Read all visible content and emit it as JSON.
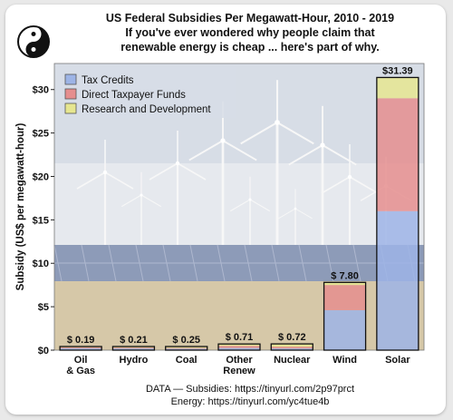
{
  "header": {
    "title_lines": [
      "US Federal Subsidies Per Megawatt-Hour, 2010 - 2019",
      "If you've ever wondered why people claim that",
      "renewable energy is cheap ... here's part of why."
    ]
  },
  "footer": {
    "lines": [
      "DATA — Subsidies: https://tinyurl.com/2p97prct",
      "Energy: https://tinyurl.com/yc4tue4b"
    ]
  },
  "logo": {
    "icon": "yin-yang-face-icon"
  },
  "colors": {
    "tax_credits": "#9db4e6",
    "direct_funds": "#e58e8e",
    "research": "#e6e690",
    "sky": "#d7dde6",
    "ground": "#d6c8a8",
    "solar_panels": "#8d9bb8"
  },
  "chart_data": {
    "type": "bar",
    "stacked": true,
    "title": "US Federal Subsidies Per Megawatt-Hour, 2010 - 2019",
    "subtitle": "If you've ever wondered why people claim that renewable energy is cheap ... here's part of why.",
    "ylabel": "Subsidy (US$ per megawatt-hour)",
    "xlabel": "",
    "categories": [
      [
        "Oil",
        "& Gas"
      ],
      [
        "Hydro"
      ],
      [
        "Coal"
      ],
      [
        "Other",
        "Renew"
      ],
      [
        "Nuclear"
      ],
      [
        "Wind"
      ],
      [
        "Solar"
      ]
    ],
    "series": [
      {
        "name": "Tax Credits",
        "color": "#9db4e6",
        "values": [
          0.1,
          0.1,
          0.1,
          0.25,
          0.2,
          4.6,
          16.0
        ]
      },
      {
        "name": "Direct Taxpayer Funds",
        "color": "#e58e8e",
        "values": [
          0.05,
          0.05,
          0.05,
          0.25,
          0.2,
          2.9,
          13.0
        ]
      },
      {
        "name": "Research and Development",
        "color": "#e6e690",
        "values": [
          0.04,
          0.06,
          0.1,
          0.21,
          0.32,
          0.3,
          2.39
        ]
      }
    ],
    "totals": [
      0.19,
      0.21,
      0.25,
      0.71,
      0.72,
      7.8,
      31.39
    ],
    "total_labels": [
      "$ 0.19",
      "$ 0.21",
      "$ 0.25",
      "$ 0.71",
      "$ 0.72",
      "$ 7.80",
      "$31.39"
    ],
    "ylim": [
      0,
      33
    ],
    "yticks": [
      0,
      5,
      10,
      15,
      20,
      25,
      30
    ],
    "ytick_labels": [
      "$0",
      "$5",
      "$10",
      "$15",
      "$20",
      "$25",
      "$30"
    ],
    "legend": {
      "placement": "top-left",
      "entries": [
        "Tax Credits",
        "Direct Taxpayer Funds",
        "Research and Development"
      ]
    },
    "grid": false
  }
}
